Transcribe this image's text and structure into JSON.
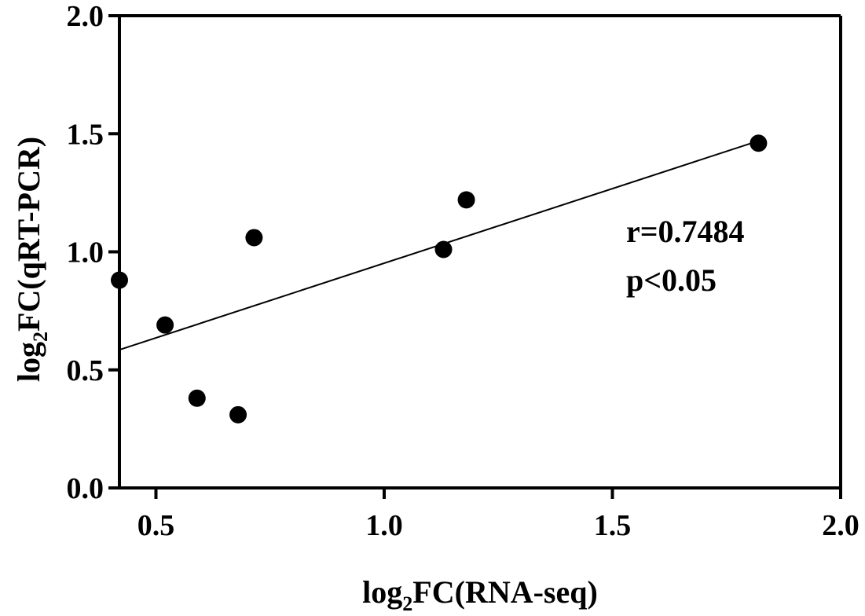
{
  "chart_data": {
    "type": "scatter",
    "xlabel": {
      "prefix": "log",
      "sub": "2",
      "suffix": "FC(RNA-seq)"
    },
    "ylabel": {
      "prefix": "log",
      "sub": "2",
      "suffix": "FC(qRT-PCR)"
    },
    "xlim": [
      0.42,
      2.0
    ],
    "ylim": [
      0.0,
      2.0
    ],
    "x_ticks": [
      {
        "value": 0.5,
        "label": "0.5"
      },
      {
        "value": 1.0,
        "label": "1.0"
      },
      {
        "value": 1.5,
        "label": "1.5"
      },
      {
        "value": 2.0,
        "label": "2.0"
      }
    ],
    "y_ticks": [
      {
        "value": 0.0,
        "label": "0.0"
      },
      {
        "value": 0.5,
        "label": "0.5"
      },
      {
        "value": 1.0,
        "label": "1.0"
      },
      {
        "value": 1.5,
        "label": "1.5"
      },
      {
        "value": 2.0,
        "label": "2.0"
      }
    ],
    "points": [
      {
        "x": 0.42,
        "y": 0.88
      },
      {
        "x": 0.52,
        "y": 0.69
      },
      {
        "x": 0.59,
        "y": 0.38
      },
      {
        "x": 0.68,
        "y": 0.31
      },
      {
        "x": 0.715,
        "y": 1.06
      },
      {
        "x": 1.13,
        "y": 1.01
      },
      {
        "x": 1.18,
        "y": 1.22
      },
      {
        "x": 1.82,
        "y": 1.46
      }
    ],
    "fit_line": {
      "x": [
        0.42,
        1.82
      ],
      "y": [
        0.585,
        1.47
      ]
    },
    "annotations": [
      "r=0.7484",
      "p<0.05"
    ],
    "grid": false,
    "legend": false
  }
}
